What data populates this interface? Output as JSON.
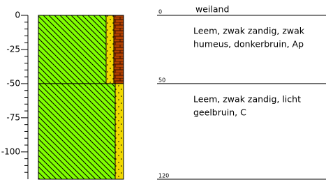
{
  "profile": {
    "title": "weiland",
    "ylim": [
      0,
      -120
    ],
    "yticks": [
      0,
      -25,
      -50,
      -75,
      -100
    ],
    "minor_yticks": [
      -5,
      -10,
      -15,
      -20,
      -30,
      -35,
      -40,
      -45,
      -55,
      -60,
      -65,
      -70,
      -80,
      -85,
      -90,
      -95,
      -105,
      -110,
      -115
    ],
    "depth_lim": [
      0,
      120
    ],
    "boundaries": [
      0,
      50,
      120
    ],
    "layers": [
      {
        "top": 0,
        "bottom": -50,
        "description": [
          "Leem, zwak zandig, zwak",
          "humeus, donkerbruin, Ap"
        ],
        "fills": [
          "hatch",
          "sand",
          "brick"
        ]
      },
      {
        "top": -50,
        "bottom": -120,
        "description": [
          "Leem, zwak zandig, licht",
          "geelbruin, C"
        ],
        "fills": [
          "hatch",
          "sand"
        ]
      }
    ]
  }
}
